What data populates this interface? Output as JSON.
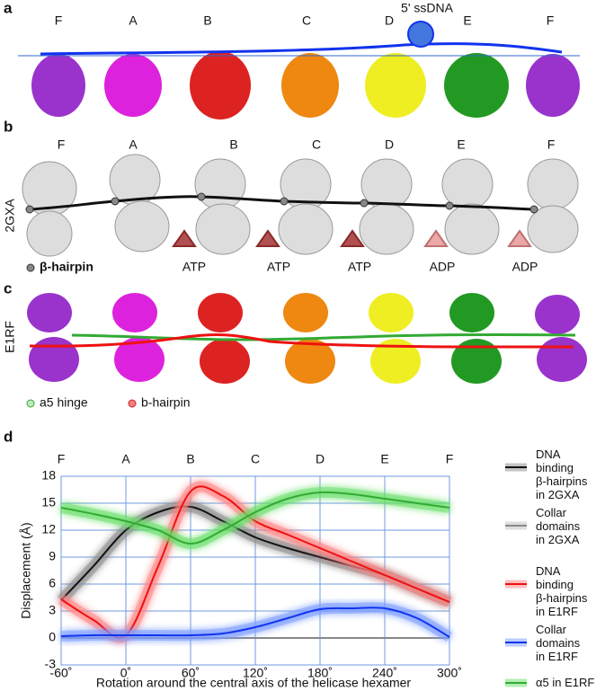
{
  "panels": {
    "a": {
      "label": "a",
      "subunits": [
        "F",
        "A",
        "B",
        "C",
        "D",
        "E",
        "F"
      ],
      "annotation": "5' ssDNA"
    },
    "b": {
      "label": "b",
      "subunits": [
        "F",
        "A",
        "B",
        "C",
        "D",
        "E",
        "F"
      ],
      "structure": "2GXA",
      "nucleotides": [
        "ATP",
        "ATP",
        "ATP",
        "ADP",
        "ADP"
      ],
      "legend": "β-hairpin"
    },
    "c": {
      "label": "c",
      "structure": "E1RF",
      "legend": [
        "a5 hinge",
        "b-hairpin"
      ]
    }
  },
  "chart_data": {
    "type": "line",
    "panel_label": "d",
    "x_label": "Rotation around the central axis of the helicase hexamer",
    "y_label": "Displacement (Å)",
    "top_labels": [
      "F",
      "A",
      "B",
      "C",
      "D",
      "E",
      "F"
    ],
    "x": [
      -60,
      -30,
      0,
      30,
      60,
      90,
      120,
      150,
      180,
      210,
      240,
      270,
      300
    ],
    "xlim": [
      -60,
      300
    ],
    "xticks": [
      {
        "value": -60,
        "label": "-60˚"
      },
      {
        "value": 0,
        "label": "0˚"
      },
      {
        "value": 60,
        "label": "60˚"
      },
      {
        "value": 120,
        "label": "120˚"
      },
      {
        "value": 180,
        "label": "180˚"
      },
      {
        "value": 240,
        "label": "240˚"
      },
      {
        "value": 300,
        "label": "300˚"
      }
    ],
    "ylim": [
      -3,
      18
    ],
    "yticks": [
      -3,
      0,
      3,
      6,
      9,
      12,
      15,
      18
    ],
    "grid": true,
    "series": [
      {
        "name": "DNA binding\nβ-hairpins\nin 2GXA",
        "color": "#111111",
        "glow": "#888888",
        "values": [
          4.2,
          8,
          12,
          14,
          14.6,
          13,
          11.2,
          10,
          9,
          8,
          7,
          5.5,
          4
        ]
      },
      {
        "name": "Collar\ndomains\nin 2GXA",
        "color": "#888888",
        "glow": "#bbbbbb",
        "values": [
          0,
          0,
          0,
          0,
          0,
          0,
          0,
          0,
          0,
          0,
          0,
          0,
          0
        ]
      },
      {
        "name": "DNA binding\nβ-hairpins\nin E1RF",
        "color": "#ee1111",
        "glow": "#ff8080",
        "values": [
          4.3,
          2,
          0.3,
          8,
          16.3,
          15.8,
          13,
          11.5,
          10,
          8.5,
          7,
          5.5,
          4
        ]
      },
      {
        "name": "Collar\ndomains\nin E1RF",
        "color": "#1133ee",
        "glow": "#7799ff",
        "values": [
          0.2,
          0.3,
          0.3,
          0.3,
          0.3,
          0.5,
          1.2,
          2.2,
          3.2,
          3.3,
          3.3,
          2.2,
          0.1
        ]
      },
      {
        "name": "α5 in E1RF",
        "color": "#33aa33",
        "glow": "#66dd66",
        "values": [
          14.5,
          13.8,
          13,
          12,
          10.5,
          12,
          14,
          15.5,
          16.2,
          16,
          15.5,
          15,
          14.5
        ]
      }
    ]
  }
}
